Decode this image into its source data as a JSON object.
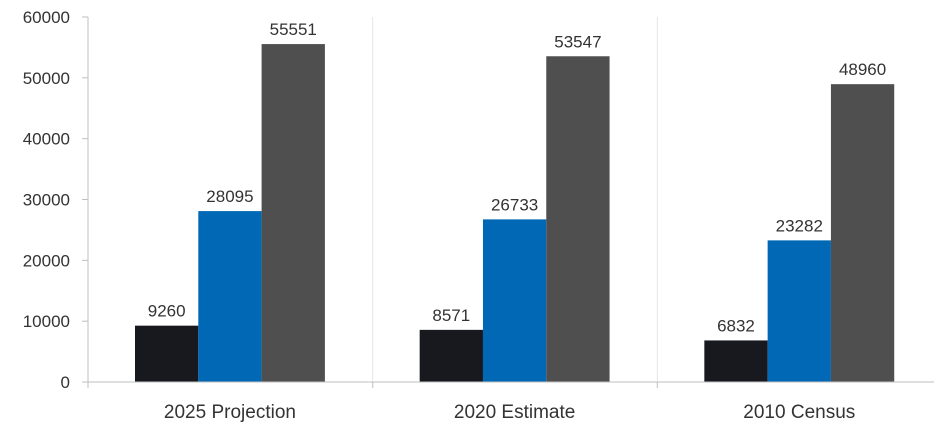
{
  "chart_data": {
    "type": "bar",
    "categories": [
      "2025 Projection",
      "2020 Estimate",
      "2010 Census"
    ],
    "series": [
      {
        "values": [
          9260,
          8571,
          6832
        ],
        "color": "#17191f"
      },
      {
        "values": [
          28095,
          26733,
          23282
        ],
        "color": "#0068b5"
      },
      {
        "values": [
          55551,
          53547,
          48960
        ],
        "color": "#4f4f4f"
      }
    ],
    "ylim": [
      0,
      60000
    ],
    "yticks": [
      0,
      10000,
      20000,
      30000,
      40000,
      50000,
      60000
    ],
    "ytick_labels": [
      "0",
      "10000",
      "20000",
      "30000",
      "40000",
      "50000",
      "60000"
    ],
    "grid": "vertical separators between categories",
    "legend": "none",
    "axis_color": "#bfbfbf",
    "grid_color": "#e6e6e6"
  }
}
